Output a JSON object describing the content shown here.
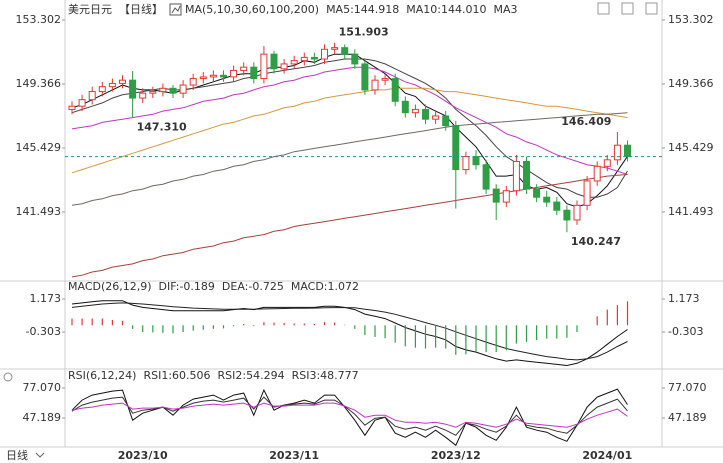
{
  "chart_data": [
    {
      "type": "candlestick",
      "title": "美元日元",
      "subtitle": "【日线】",
      "subtitle_color": "#e07b00",
      "indicator": "MA(5,10,30,60,100,200)",
      "categories": [
        null,
        null,
        null,
        null,
        null,
        null,
        null,
        "2023/10",
        null,
        null,
        null,
        null,
        null,
        null,
        null,
        null,
        null,
        null,
        null,
        null,
        null,
        null,
        "2023/11",
        null,
        null,
        null,
        null,
        null,
        null,
        null,
        null,
        null,
        null,
        null,
        null,
        null,
        null,
        null,
        "2023/12",
        null,
        null,
        null,
        null,
        null,
        null,
        null,
        null,
        null,
        null,
        null,
        null,
        null,
        null,
        "2024/01",
        null,
        null
      ],
      "open": [
        147.8,
        148.0,
        148.4,
        148.9,
        149.2,
        149.4,
        149.6,
        148.5,
        148.8,
        148.9,
        149.1,
        148.8,
        149.3,
        149.7,
        149.8,
        149.9,
        149.8,
        150.2,
        150.4,
        149.7,
        151.2,
        150.3,
        150.6,
        150.8,
        151.0,
        150.9,
        151.5,
        151.6,
        151.2,
        150.6,
        149.0,
        149.6,
        149.7,
        148.3,
        147.6,
        147.8,
        147.2,
        147.4,
        146.8,
        144.1,
        144.9,
        144.4,
        142.9,
        142.1,
        142.8,
        144.6,
        142.9,
        142.4,
        142.1,
        141.6,
        141.0,
        141.9,
        143.4,
        144.3,
        144.7,
        145.6
      ],
      "high": [
        148.3,
        148.7,
        149.2,
        149.5,
        149.7,
        149.9,
        150.16,
        149.1,
        149.2,
        149.4,
        149.3,
        149.6,
        150.0,
        150.1,
        150.2,
        150.2,
        150.5,
        150.7,
        150.7,
        151.7,
        151.4,
        150.9,
        151.1,
        151.3,
        151.3,
        151.8,
        151.903,
        151.8,
        151.5,
        150.8,
        149.9,
        150.0,
        150.0,
        148.6,
        148.1,
        148.1,
        147.7,
        147.7,
        147.1,
        145.2,
        145.3,
        144.7,
        143.2,
        143.1,
        145.0,
        144.9,
        143.2,
        142.8,
        142.4,
        141.9,
        142.2,
        143.7,
        144.6,
        145.0,
        146.409,
        145.9
      ],
      "low": [
        147.5,
        147.7,
        148.1,
        148.6,
        148.9,
        149.1,
        147.31,
        148.2,
        148.5,
        148.6,
        148.5,
        148.5,
        149.0,
        149.4,
        149.5,
        149.5,
        149.5,
        149.9,
        149.4,
        149.4,
        150.0,
        150.0,
        150.3,
        150.5,
        150.6,
        150.6,
        151.2,
        150.9,
        150.3,
        148.7,
        148.7,
        149.3,
        148.0,
        147.3,
        147.3,
        146.9,
        146.9,
        146.5,
        141.7,
        143.8,
        144.1,
        142.6,
        141.0,
        141.8,
        142.5,
        142.6,
        142.1,
        141.8,
        141.3,
        140.247,
        140.7,
        141.6,
        143.1,
        144.0,
        144.4,
        144.6
      ],
      "close": [
        148.0,
        148.4,
        148.9,
        149.2,
        149.4,
        149.6,
        148.5,
        148.8,
        148.9,
        149.1,
        148.8,
        149.3,
        149.7,
        149.8,
        149.9,
        149.8,
        150.2,
        150.4,
        149.7,
        151.2,
        150.3,
        150.6,
        150.8,
        151.0,
        150.9,
        151.5,
        151.6,
        151.2,
        150.6,
        149.0,
        149.6,
        149.7,
        148.3,
        147.6,
        147.8,
        147.2,
        147.4,
        146.8,
        144.1,
        144.9,
        144.4,
        142.9,
        142.1,
        142.8,
        144.6,
        142.9,
        142.4,
        142.1,
        141.6,
        141.0,
        141.9,
        143.4,
        144.3,
        144.7,
        145.6,
        144.9
      ],
      "up_color": "#e8352e",
      "down_color": "#2f9e44",
      "last_price_color": "#2a8aa0",
      "series": [
        {
          "label": "MA5:144.918",
          "color": "#111111",
          "values": [
            147.9,
            148.1,
            148.4,
            148.7,
            149.0,
            149.3,
            149.1,
            149.0,
            149.0,
            148.9,
            148.8,
            149.0,
            149.1,
            149.3,
            149.5,
            149.7,
            149.9,
            150.0,
            150.0,
            150.3,
            150.4,
            150.4,
            150.5,
            150.8,
            150.7,
            151.0,
            151.2,
            151.2,
            151.2,
            150.8,
            150.4,
            150.0,
            149.4,
            148.8,
            148.6,
            148.0,
            147.7,
            147.4,
            146.7,
            146.1,
            145.5,
            144.6,
            143.7,
            143.7,
            143.8,
            143.1,
            142.9,
            143.0,
            142.7,
            142.0,
            141.8,
            142.0,
            142.5,
            143.1,
            144.0,
            144.918
          ]
        },
        {
          "label": "MA10:144.010",
          "color": "#444444",
          "values": [
            147.6,
            147.8,
            148.0,
            148.2,
            148.5,
            148.7,
            148.8,
            148.9,
            149.0,
            149.1,
            149.0,
            149.0,
            149.1,
            149.2,
            149.3,
            149.4,
            149.5,
            149.7,
            149.8,
            150.0,
            150.1,
            150.2,
            150.3,
            150.4,
            150.5,
            150.7,
            150.8,
            150.9,
            150.9,
            150.9,
            150.8,
            150.6,
            150.3,
            150.0,
            149.7,
            149.4,
            149.0,
            148.5,
            147.8,
            147.3,
            146.8,
            146.2,
            145.5,
            144.9,
            144.5,
            144.1,
            143.7,
            143.3,
            143.0,
            142.9,
            142.6,
            142.4,
            142.4,
            142.6,
            143.0,
            144.01
          ]
        },
        {
          "label": "MA3",
          "color": "#c235c2",
          "values": [
            146.6,
            146.7,
            146.8,
            147.0,
            147.1,
            147.2,
            147.3,
            147.4,
            147.5,
            147.7,
            147.8,
            147.9,
            148.1,
            148.3,
            148.4,
            148.5,
            148.7,
            148.8,
            149.0,
            149.2,
            149.3,
            149.5,
            149.6,
            149.8,
            149.9,
            150.1,
            150.2,
            150.3,
            150.4,
            150.4,
            150.3,
            150.1,
            149.8,
            149.5,
            149.3,
            149.0,
            148.7,
            148.3,
            147.9,
            147.6,
            147.3,
            147.0,
            146.7,
            146.3,
            146.1,
            145.8,
            145.6,
            145.3,
            145.0,
            144.8,
            144.6,
            144.4,
            144.3,
            144.2,
            144.0,
            143.8
          ]
        },
        {
          "color": "#d49a3a",
          "values": [
            143.9,
            144.1,
            144.3,
            144.5,
            144.7,
            144.9,
            145.1,
            145.3,
            145.5,
            145.7,
            145.9,
            146.1,
            146.3,
            146.5,
            146.7,
            146.9,
            147.0,
            147.2,
            147.4,
            147.5,
            147.7,
            147.9,
            148.0,
            148.2,
            148.3,
            148.5,
            148.6,
            148.7,
            148.8,
            148.9,
            149.0,
            149.0,
            149.1,
            149.1,
            149.1,
            149.1,
            149.0,
            148.9,
            148.9,
            148.8,
            148.7,
            148.6,
            148.5,
            148.4,
            148.3,
            148.2,
            148.1,
            148.0,
            148.0,
            147.9,
            147.8,
            147.7,
            147.6,
            147.5,
            147.4,
            147.3
          ]
        },
        {
          "color": "#6e6a66",
          "values": [
            141.9,
            142.0,
            142.2,
            142.3,
            142.5,
            142.6,
            142.8,
            142.9,
            143.1,
            143.2,
            143.4,
            143.5,
            143.7,
            143.8,
            144.0,
            144.1,
            144.3,
            144.4,
            144.6,
            144.7,
            144.9,
            145.0,
            145.2,
            145.3,
            145.4,
            145.5,
            145.6,
            145.7,
            145.8,
            145.9,
            146.0,
            146.1,
            146.2,
            146.3,
            146.4,
            146.5,
            146.6,
            146.7,
            146.8,
            146.85,
            146.9,
            146.95,
            147.0,
            147.05,
            147.1,
            147.15,
            147.2,
            147.25,
            147.3,
            147.35,
            147.4,
            147.45,
            147.5,
            147.5,
            147.55,
            147.6
          ]
        },
        {
          "color": "#a5423c",
          "values": [
            137.5,
            137.6,
            137.8,
            137.9,
            138.1,
            138.2,
            138.3,
            138.5,
            138.6,
            138.8,
            138.9,
            139.0,
            139.2,
            139.3,
            139.4,
            139.6,
            139.7,
            139.9,
            140.0,
            140.1,
            140.3,
            140.4,
            140.6,
            140.7,
            140.8,
            140.9,
            141.0,
            141.1,
            141.2,
            141.3,
            141.4,
            141.5,
            141.6,
            141.7,
            141.8,
            141.9,
            142.0,
            142.1,
            142.2,
            142.3,
            142.4,
            142.5,
            142.6,
            142.7,
            142.8,
            142.9,
            143.0,
            143.1,
            143.2,
            143.3,
            143.4,
            143.5,
            143.6,
            143.7,
            143.75,
            143.8
          ]
        }
      ],
      "annotations": [
        {
          "field": "high",
          "value": 151.903
        },
        {
          "field": "low",
          "value": 147.31,
          "label": "147.310"
        },
        {
          "field": "high",
          "value": 146.409
        },
        {
          "field": "low",
          "value": 140.247
        }
      ],
      "ylim": [
        137.43,
        154.04
      ],
      "yticks": [
        141.493,
        145.429,
        149.366,
        153.302
      ]
    },
    {
      "type": "macd",
      "indicator": "MACD(26,12,9)",
      "up_color": "#e8352e",
      "down_color": "#2f9e44",
      "series": [
        {
          "label": "DIF:-0.189",
          "color": "#111111",
          "values": [
            0.95,
            1.0,
            1.05,
            1.1,
            1.1,
            1.1,
            0.9,
            0.8,
            0.75,
            0.7,
            0.65,
            0.65,
            0.65,
            0.65,
            0.65,
            0.65,
            0.7,
            0.75,
            0.7,
            0.8,
            0.8,
            0.8,
            0.8,
            0.8,
            0.8,
            0.85,
            0.85,
            0.8,
            0.7,
            0.5,
            0.4,
            0.3,
            0.1,
            -0.1,
            -0.25,
            -0.4,
            -0.5,
            -0.65,
            -0.95,
            -1.1,
            -1.2,
            -1.35,
            -1.5,
            -1.6,
            -1.55,
            -1.6,
            -1.65,
            -1.7,
            -1.75,
            -1.8,
            -1.7,
            -1.5,
            -1.2,
            -0.85,
            -0.5,
            -0.189
          ]
        },
        {
          "label": "DEA:-0.725",
          "color": "#222222",
          "values": [
            0.8,
            0.85,
            0.9,
            0.95,
            0.98,
            1.0,
            0.98,
            0.95,
            0.91,
            0.87,
            0.83,
            0.8,
            0.77,
            0.75,
            0.73,
            0.72,
            0.72,
            0.72,
            0.72,
            0.73,
            0.74,
            0.75,
            0.76,
            0.76,
            0.77,
            0.78,
            0.79,
            0.79,
            0.78,
            0.72,
            0.66,
            0.59,
            0.49,
            0.37,
            0.25,
            0.12,
            0.0,
            -0.13,
            -0.29,
            -0.45,
            -0.6,
            -0.75,
            -0.9,
            -1.04,
            -1.14,
            -1.23,
            -1.32,
            -1.4,
            -1.45,
            -1.52,
            -1.55,
            -1.5,
            -1.4,
            -1.2,
            -0.95,
            -0.725
          ]
        },
        {
          "label": "MACD:1.072",
          "kind": "bar",
          "color": "#c235c2",
          "values": [
            0.3,
            0.3,
            0.3,
            0.3,
            0.24,
            0.2,
            -0.16,
            -0.3,
            -0.32,
            -0.34,
            -0.36,
            -0.3,
            -0.24,
            -0.2,
            -0.16,
            -0.14,
            -0.04,
            0.06,
            -0.04,
            0.14,
            0.12,
            0.1,
            0.08,
            0.08,
            0.06,
            0.14,
            0.12,
            0.02,
            -0.16,
            -0.44,
            -0.52,
            -0.58,
            -0.78,
            -0.94,
            -1.0,
            -1.04,
            -1.0,
            -1.04,
            -1.32,
            -1.3,
            -1.2,
            -1.2,
            -1.2,
            -1.12,
            -0.82,
            -0.74,
            -0.66,
            -0.6,
            -0.6,
            -0.56,
            -0.3,
            0,
            0.4,
            0.7,
            0.9,
            1.072
          ]
        }
      ],
      "ylim": [
        -1.91,
        1.89
      ],
      "yticks": [
        -0.303,
        1.173
      ]
    },
    {
      "type": "line",
      "indicator": "RSI(6,12,24)",
      "series": [
        {
          "label": "RSI1:60.506",
          "color": "#111111",
          "values": [
            55,
            65,
            70,
            72,
            74,
            75,
            45,
            52,
            55,
            58,
            50,
            60,
            66,
            68,
            70,
            65,
            70,
            72,
            50,
            75,
            55,
            60,
            62,
            65,
            62,
            70,
            70,
            58,
            45,
            30,
            45,
            48,
            32,
            28,
            33,
            28,
            35,
            28,
            20,
            42,
            38,
            30,
            25,
            38,
            58,
            38,
            35,
            33,
            28,
            24,
            40,
            58,
            68,
            72,
            76,
            60.506
          ]
        },
        {
          "label": "RSI2:54.294",
          "color": "#333333",
          "values": [
            54,
            60,
            63,
            65,
            67,
            68,
            52,
            55,
            56,
            58,
            54,
            58,
            62,
            64,
            65,
            63,
            65,
            67,
            56,
            68,
            58,
            60,
            61,
            62,
            61,
            65,
            65,
            59,
            51,
            40,
            47,
            48,
            39,
            36,
            38,
            35,
            39,
            35,
            30,
            42,
            40,
            36,
            33,
            39,
            50,
            40,
            38,
            37,
            34,
            32,
            40,
            50,
            58,
            62,
            66,
            54.294
          ]
        },
        {
          "label": "RSI3:48.777",
          "color": "#c235c2",
          "values": [
            55,
            57,
            58,
            60,
            61,
            62,
            56,
            57,
            57,
            58,
            56,
            57,
            59,
            60,
            61,
            60,
            61,
            62,
            58,
            62,
            59,
            59,
            60,
            60,
            60,
            62,
            62,
            59,
            55,
            48,
            50,
            50,
            45,
            43,
            43,
            42,
            43,
            41,
            38,
            43,
            42,
            40,
            38,
            41,
            46,
            42,
            41,
            40,
            39,
            38,
            41,
            46,
            50,
            53,
            56,
            48.777
          ]
        }
      ],
      "ylim": [
        18.3,
        93.0
      ],
      "yticks": [
        47.189,
        {
          "value": 77.07,
          "label": "77.070"
        }
      ]
    }
  ],
  "footer": {
    "tab": "日线"
  }
}
